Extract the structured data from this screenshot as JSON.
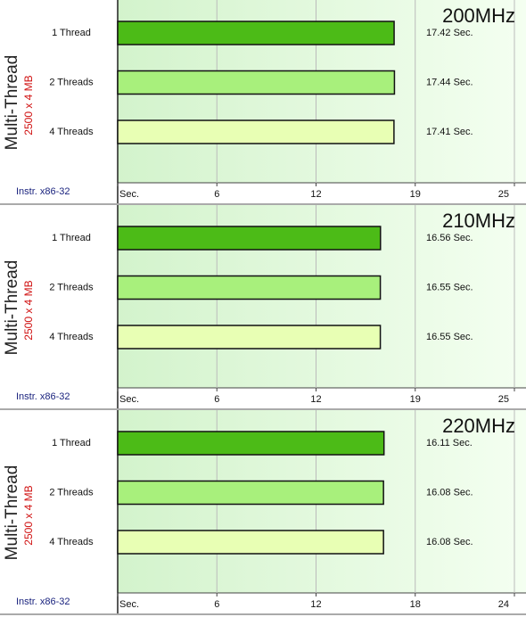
{
  "chart_data": [
    {
      "type": "bar",
      "title": "200MHz",
      "ylabel": "Multi-Thread",
      "subtitle": "2500 x 4 MB",
      "note": "Instr. x86-32",
      "categories": [
        "1 Thread",
        "2 Threads",
        "4 Threads"
      ],
      "values": [
        17.42,
        17.44,
        17.41
      ],
      "value_labels": [
        "17.42 Sec.",
        "17.44 Sec.",
        "17.41 Sec."
      ],
      "colors": [
        "#4cbb17",
        "#a8f07c",
        "#e8ffb4"
      ],
      "xlim": [
        0,
        25
      ],
      "xticks": [
        {
          "value": 0,
          "label": "Sec."
        },
        {
          "value": 6.25,
          "label": "6"
        },
        {
          "value": 12.5,
          "label": "12"
        },
        {
          "value": 18.75,
          "label": "19"
        },
        25
      ],
      "grid": true
    },
    {
      "type": "bar",
      "title": "210MHz",
      "ylabel": "Multi-Thread",
      "subtitle": "2500 x 4 MB",
      "note": "Instr. x86-32",
      "categories": [
        "1 Thread",
        "2 Threads",
        "4 Threads"
      ],
      "values": [
        16.56,
        16.55,
        16.55
      ],
      "value_labels": [
        "16.56 Sec.",
        "16.55 Sec.",
        "16.55 Sec."
      ],
      "colors": [
        "#4cbb17",
        "#a8f07c",
        "#e8ffb4"
      ],
      "xlim": [
        0,
        25
      ],
      "xticks": [
        {
          "value": 0,
          "label": "Sec."
        },
        {
          "value": 6.25,
          "label": "6"
        },
        {
          "value": 12.5,
          "label": "12"
        },
        {
          "value": 18.75,
          "label": "19"
        },
        25
      ],
      "grid": true
    },
    {
      "type": "bar",
      "title": "220MHz",
      "ylabel": "Multi-Thread",
      "subtitle": "2500 x 4 MB",
      "note": "Instr. x86-32",
      "categories": [
        "1 Thread",
        "2 Threads",
        "4 Threads"
      ],
      "values": [
        16.11,
        16.08,
        16.08
      ],
      "value_labels": [
        "16.11 Sec.",
        "16.08 Sec.",
        "16.08 Sec."
      ],
      "colors": [
        "#4cbb17",
        "#a8f07c",
        "#e8ffb4"
      ],
      "xlim": [
        0,
        24
      ],
      "xticks": [
        {
          "value": 0,
          "label": "Sec."
        },
        6,
        12,
        18,
        24
      ],
      "grid": true
    }
  ]
}
